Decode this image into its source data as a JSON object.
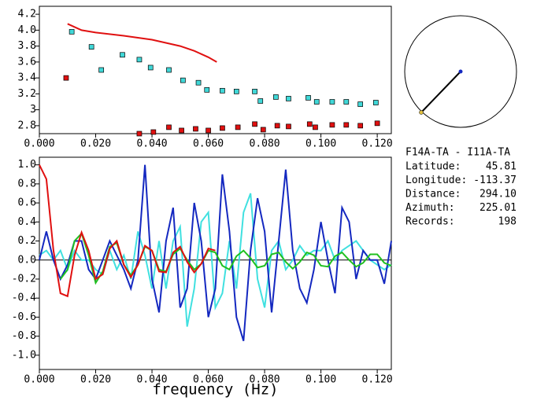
{
  "chart_data": [
    {
      "type": "scatter",
      "xlim": [
        0,
        0.125
      ],
      "ylim": [
        2.7,
        4.3
      ],
      "xticks": [
        {
          "value": 0,
          "label": "0.000"
        },
        {
          "value": 0.02,
          "label": "0.020"
        },
        {
          "value": 0.04,
          "label": "0.040"
        },
        {
          "value": 0.06,
          "label": "0.060"
        },
        {
          "value": 0.08,
          "label": "0.080"
        },
        {
          "value": 0.1,
          "label": "0.100"
        },
        {
          "value": 0.12,
          "label": "0.120"
        }
      ],
      "yticks": [
        2.8,
        3.0,
        {
          "value": 3.2,
          "label": "3.2"
        },
        3.4,
        3.6,
        3.8,
        {
          "value": 4.0,
          "label": "4.0"
        },
        4.2
      ],
      "series": [
        {
          "mode": "line",
          "color": "#e01010",
          "x": [
            0.01,
            0.015,
            0.02,
            0.03,
            0.04,
            0.05,
            0.055,
            0.06,
            0.063
          ],
          "values": [
            4.08,
            4.0,
            3.97,
            3.93,
            3.88,
            3.8,
            3.74,
            3.66,
            3.6
          ]
        },
        {
          "mode": "markers",
          "color": "#40d8d8",
          "x": [
            0.0115,
            0.0185,
            0.022,
            0.0295,
            0.0355,
            0.0395,
            0.046,
            0.051,
            0.0565,
            0.0595,
            0.065,
            0.07,
            0.0765,
            0.0785,
            0.084,
            0.0885,
            0.0955,
            0.0985,
            0.104,
            0.109,
            0.114,
            0.1195
          ],
          "values": [
            3.98,
            3.79,
            3.5,
            3.69,
            3.63,
            3.53,
            3.5,
            3.37,
            3.34,
            3.25,
            3.24,
            3.23,
            3.23,
            3.11,
            3.16,
            3.14,
            3.15,
            3.1,
            3.1,
            3.1,
            3.07,
            3.09
          ]
        },
        {
          "mode": "markers",
          "color": "#e01010",
          "x": [
            0.0095,
            0.0355,
            0.0405,
            0.046,
            0.0505,
            0.0555,
            0.06,
            0.065,
            0.0705,
            0.0765,
            0.0795,
            0.0845,
            0.0885,
            0.096,
            0.098,
            0.104,
            0.109,
            0.114,
            0.12
          ],
          "values": [
            3.4,
            2.7,
            2.72,
            2.78,
            2.74,
            2.76,
            2.74,
            2.77,
            2.78,
            2.82,
            2.75,
            2.8,
            2.79,
            2.82,
            2.78,
            2.81,
            2.81,
            2.8,
            2.83
          ]
        }
      ]
    },
    {
      "type": "line",
      "x_label": "frequency (Hz)",
      "zero_line": true,
      "xlim": [
        0,
        0.125
      ],
      "ylim": [
        -1.15,
        1.08
      ],
      "xticks": [
        {
          "value": 0,
          "label": "0.000"
        },
        {
          "value": 0.02,
          "label": "0.020"
        },
        {
          "value": 0.04,
          "label": "0.040"
        },
        {
          "value": 0.06,
          "label": "0.060"
        },
        {
          "value": 0.08,
          "label": "0.080"
        },
        {
          "value": 0.1,
          "label": "0.100"
        },
        {
          "value": 0.12,
          "label": "0.120"
        }
      ],
      "yticks": [
        {
          "value": -1.0,
          "label": "-1.0"
        },
        -0.8,
        -0.6,
        -0.4,
        -0.2,
        {
          "value": 0,
          "label": "0.0"
        },
        0.2,
        0.4,
        0.6,
        0.8,
        {
          "value": 1.0,
          "label": "1.0"
        }
      ],
      "x": [
        0,
        0.0025,
        0.005,
        0.0075,
        0.01,
        0.0125,
        0.015,
        0.0175,
        0.02,
        0.0225,
        0.025,
        0.0275,
        0.03,
        0.0325,
        0.035,
        0.0375,
        0.04,
        0.0425,
        0.045,
        0.0475,
        0.05,
        0.0525,
        0.055,
        0.0575,
        0.06,
        0.0625,
        0.065,
        0.0675,
        0.07,
        0.0725,
        0.075,
        0.0775,
        0.08,
        0.0825,
        0.085,
        0.0875,
        0.09,
        0.0925,
        0.095,
        0.0975,
        0.1,
        0.1025,
        0.105,
        0.1075,
        0.11,
        0.1125,
        0.115,
        0.1175,
        0.12,
        0.1225,
        0.125
      ],
      "series": [
        {
          "color": "#40e0e0",
          "values": [
            0.05,
            0.1,
            0.0,
            0.1,
            -0.1,
            0.1,
            0.0,
            0.0,
            -0.1,
            -0.15,
            0.1,
            -0.1,
            0.05,
            -0.2,
            0.3,
            0.05,
            -0.3,
            0.2,
            -0.3,
            0.2,
            0.35,
            -0.7,
            -0.3,
            0.4,
            0.5,
            -0.5,
            -0.35,
            0.2,
            -0.3,
            0.5,
            0.7,
            -0.2,
            -0.5,
            0.1,
            0.2,
            -0.1,
            0.0,
            0.15,
            0.05,
            0.1,
            0.1,
            0.2,
            0.0,
            0.1,
            0.15,
            0.2,
            0.1,
            0.0,
            -0.05,
            -0.1,
            -0.05
          ]
        },
        {
          "color": "#1428c0",
          "values": [
            0.0,
            0.3,
            0.0,
            -0.2,
            -0.05,
            0.2,
            0.2,
            -0.1,
            -0.2,
            0.0,
            0.2,
            0.05,
            -0.1,
            -0.3,
            0.0,
            1.0,
            -0.2,
            -0.55,
            0.2,
            0.55,
            -0.5,
            -0.3,
            0.6,
            0.2,
            -0.6,
            -0.3,
            0.9,
            0.3,
            -0.6,
            -0.85,
            0.1,
            0.65,
            0.3,
            -0.55,
            0.2,
            0.95,
            0.1,
            -0.3,
            -0.45,
            -0.1,
            0.4,
            0.0,
            -0.35,
            0.55,
            0.4,
            -0.2,
            0.1,
            0.0,
            0.0,
            -0.25,
            0.2
          ]
        },
        {
          "color": "#20c020",
          "values": [
            null,
            null,
            null,
            -0.2,
            -0.1,
            0.2,
            0.28,
            0.05,
            -0.24,
            -0.12,
            0.14,
            0.18,
            -0.05,
            -0.16,
            -0.05,
            0.14,
            0.1,
            -0.1,
            -0.12,
            0.06,
            0.12,
            0.0,
            -0.1,
            -0.04,
            0.1,
            0.08,
            -0.06,
            -0.1,
            0.04,
            0.1,
            0.02,
            -0.08,
            -0.06,
            0.06,
            0.08,
            -0.02,
            -0.09,
            -0.02,
            0.08,
            0.05,
            -0.06,
            -0.07,
            0.04,
            0.08,
            0.0,
            -0.07,
            -0.03,
            0.06,
            0.06,
            -0.03,
            -0.06
          ]
        },
        {
          "color": "#e01010",
          "values": [
            1.0,
            0.85,
            0.1,
            -0.35,
            -0.38,
            0.05,
            0.29,
            0.1,
            -0.2,
            -0.15,
            0.12,
            0.2,
            -0.05,
            -0.18,
            -0.05,
            0.15,
            0.1,
            -0.12,
            -0.13,
            0.08,
            0.14,
            -0.02,
            -0.13,
            -0.04,
            0.12,
            0.1,
            null,
            null,
            null,
            null,
            null,
            null,
            null,
            null,
            null,
            null,
            null,
            null,
            null,
            null,
            null,
            null,
            null,
            null,
            null,
            null,
            null,
            null,
            null,
            null,
            null
          ]
        }
      ]
    }
  ],
  "info": {
    "title": "F14A-TA - I11A-TA",
    "rows": [
      [
        "Latitude:",
        "45.81"
      ],
      [
        "Longitude:",
        "-113.37"
      ],
      [
        "Distance:",
        "294.10"
      ],
      [
        "Azimuth:",
        "225.01"
      ],
      [
        "Records:",
        "198"
      ]
    ]
  }
}
